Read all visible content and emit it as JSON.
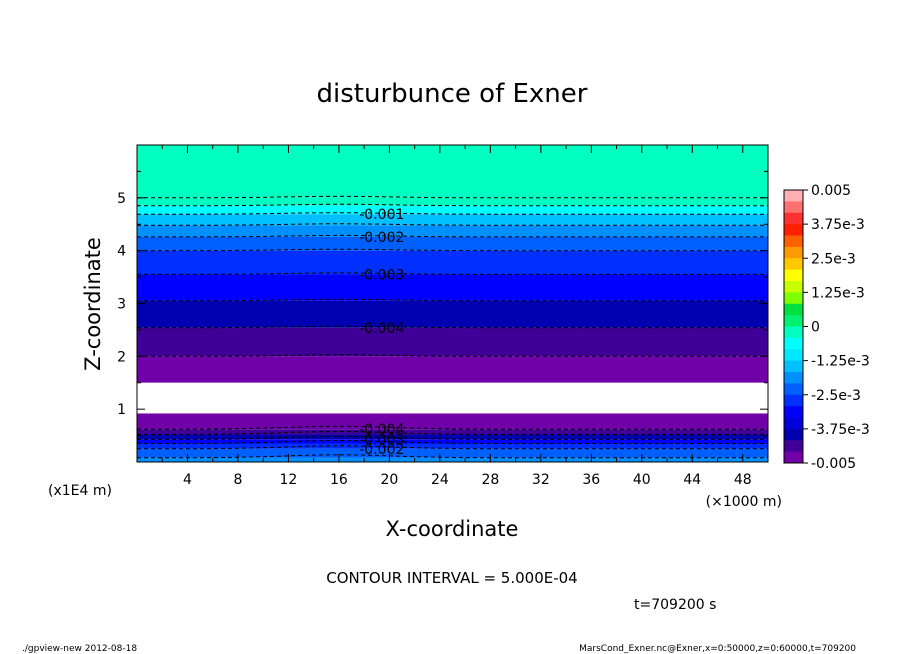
{
  "chart_data": {
    "type": "heatmap",
    "title": "disturbunce of Exner",
    "xlabel": "X-coordinate",
    "ylabel": "Z-coordinate",
    "x_unit": "(×1000 m)",
    "y_unit": "(x1E4 m)",
    "xlim": [
      0,
      50
    ],
    "ylim": [
      0,
      6
    ],
    "x_ticks": [
      "4",
      "8",
      "12",
      "16",
      "20",
      "24",
      "28",
      "32",
      "36",
      "40",
      "44",
      "48"
    ],
    "y_ticks": [
      "1",
      "2",
      "3",
      "4",
      "5"
    ],
    "colorbar": {
      "min": -0.005,
      "max": 0.005,
      "labels": [
        "0.005",
        "3.75e-3",
        "2.5e-3",
        "1.25e-3",
        "0",
        "-1.25e-3",
        "-2.5e-3",
        "-3.75e-3",
        "-0.005"
      ],
      "colors": [
        "#ffb0b0",
        "#ff7070",
        "#ff3030",
        "#ff2000",
        "#ff6000",
        "#ff9a00",
        "#ffc800",
        "#ffff00",
        "#c8ff00",
        "#80ff00",
        "#00e040",
        "#00f070",
        "#00ffc0",
        "#00ffff",
        "#00e8ff",
        "#00c0ff",
        "#0090ff",
        "#0060ff",
        "#0030ff",
        "#0000ff",
        "#0000d8",
        "#0000b0",
        "#400098",
        "#7000a8"
      ]
    },
    "contour_interval": 0.0005,
    "contour_labels": [
      {
        "text": "-0.001",
        "z": 4.69
      },
      {
        "text": "-0.002",
        "z": 4.26
      },
      {
        "text": "-0.003",
        "z": 3.55
      },
      {
        "text": "-0.004",
        "z": 2.54
      },
      {
        "text": "-0.004",
        "z": 0.62
      },
      {
        "text": "-0.003",
        "z": 0.43
      },
      {
        "text": "-0.002",
        "z": 0.25
      }
    ],
    "bands_upper": [
      {
        "z0": 5.0,
        "z1": 6.0,
        "value": 0.0
      },
      {
        "z0": 4.85,
        "z1": 5.0,
        "value": -0.00025
      },
      {
        "z0": 4.69,
        "z1": 4.85,
        "value": -0.00075
      },
      {
        "z0": 4.48,
        "z1": 4.69,
        "value": -0.00125
      },
      {
        "z0": 4.26,
        "z1": 4.48,
        "value": -0.00175
      },
      {
        "z0": 4.0,
        "z1": 4.26,
        "value": -0.00225
      },
      {
        "z0": 3.55,
        "z1": 4.0,
        "value": -0.00275
      },
      {
        "z0": 3.05,
        "z1": 3.55,
        "value": -0.00325
      },
      {
        "z0": 2.54,
        "z1": 3.05,
        "value": -0.00375
      },
      {
        "z0": 2.0,
        "z1": 2.54,
        "value": -0.00425
      },
      {
        "z0": 1.5,
        "z1": 2.0,
        "value": -0.00475
      }
    ],
    "bands_lower": [
      {
        "z0": 0.0,
        "z1": 0.08,
        "value": -0.00175
      },
      {
        "z0": 0.08,
        "z1": 0.25,
        "value": -0.00225
      },
      {
        "z0": 0.25,
        "z1": 0.35,
        "value": -0.00275
      },
      {
        "z0": 0.35,
        "z1": 0.43,
        "value": -0.00325
      },
      {
        "z0": 0.43,
        "z1": 0.52,
        "value": -0.00375
      },
      {
        "z0": 0.52,
        "z1": 0.62,
        "value": -0.00425
      },
      {
        "z0": 0.62,
        "z1": 0.92,
        "value": -0.00475
      }
    ],
    "missing_region": {
      "z0": 0.92,
      "z1": 1.5
    }
  },
  "contour_interval_text": "CONTOUR INTERVAL = 5.000E-04",
  "time_text": "t=709200 s",
  "footer_left": "./gpview-new   2012-08-18",
  "footer_right": "MarsCond_Exner.nc@Exner,x=0:50000,z=0:60000,t=709200"
}
